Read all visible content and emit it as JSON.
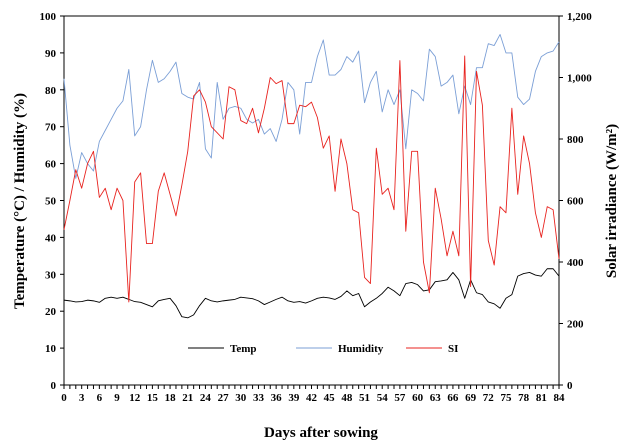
{
  "chart_data": {
    "type": "line",
    "xlabel": "Days after sowing",
    "ylabel_left": "Temperature (°C) /  Humidity (%)",
    "ylabel_right": "Solar irradiance (W/m²)",
    "xlim": [
      0,
      84
    ],
    "ylim_left": [
      0,
      100
    ],
    "ylim_right": [
      0,
      1200
    ],
    "x_ticks": [
      0,
      3,
      6,
      9,
      12,
      15,
      18,
      21,
      24,
      27,
      30,
      33,
      36,
      39,
      42,
      45,
      48,
      51,
      54,
      57,
      60,
      63,
      66,
      69,
      72,
      75,
      78,
      81,
      84
    ],
    "y_ticks_left": [
      0,
      10,
      20,
      30,
      40,
      50,
      60,
      70,
      80,
      90,
      100
    ],
    "y_ticks_right": [
      0,
      200,
      400,
      600,
      800,
      1000,
      1200
    ],
    "y_tick_labels_right": [
      "0",
      "200",
      "400",
      "600",
      "800",
      "1,000",
      "1,200"
    ],
    "grid": false,
    "legend_position": "bottom-center",
    "series": [
      {
        "name": "Temp",
        "color": "#000000",
        "axis": "left",
        "values": [
          23,
          22.8,
          22.5,
          22.6,
          23,
          22.8,
          22.4,
          23.5,
          23.8,
          23.5,
          23.8,
          23.2,
          22.6,
          22.4,
          21.8,
          21.2,
          22.8,
          23.2,
          23.5,
          21.5,
          18.5,
          18.2,
          19,
          21.5,
          23.5,
          22.8,
          22.5,
          22.8,
          23,
          23.2,
          23.8,
          23.6,
          23.4,
          22.8,
          21.8,
          22.5,
          23.2,
          23.8,
          22.8,
          22.4,
          22.6,
          22.2,
          22.8,
          23.5,
          23.8,
          23.6,
          23.2,
          24,
          25.5,
          24.2,
          24.8,
          21.2,
          22.5,
          23.5,
          24.8,
          26.5,
          25.5,
          24.2,
          27.5,
          27.8,
          27.2,
          25.5,
          25.8,
          28,
          28.2,
          28.5,
          30.5,
          28.5,
          23.5,
          28.5,
          25,
          24.5,
          22.5,
          22,
          20.8,
          23.5,
          24.5,
          29.5,
          30.2,
          30.5,
          29.8,
          29.5,
          31.5,
          31.5,
          29.5
        ]
      },
      {
        "name": "Humidity",
        "color": "#7b9fd6",
        "axis": "left",
        "values": [
          83,
          65,
          56,
          63,
          60,
          58,
          66,
          69,
          72,
          75,
          77,
          85.5,
          67.5,
          70,
          80,
          88,
          82,
          83,
          85,
          87.5,
          79,
          78,
          77.5,
          82,
          64,
          61.5,
          82,
          72,
          75,
          75.5,
          75,
          72,
          71,
          72,
          68,
          69.5,
          66,
          72,
          82,
          80,
          68,
          82,
          82,
          89,
          93.5,
          84,
          84,
          85.5,
          89,
          87.5,
          90.5,
          76.5,
          82,
          85,
          74,
          80,
          76,
          80,
          64,
          80,
          79,
          77,
          91,
          89,
          81,
          82,
          84,
          73.5,
          81,
          76,
          86,
          86,
          92.5,
          92,
          95,
          90,
          90,
          78,
          76,
          77.5,
          85,
          89,
          90,
          90.5,
          93
        ]
      },
      {
        "name": "SI",
        "color": "#e8231f",
        "axis": "right",
        "values": [
          505,
          600,
          700,
          640,
          720,
          760,
          610,
          640,
          570,
          640,
          600,
          270,
          660,
          690,
          460,
          460,
          630,
          690,
          620,
          550,
          650,
          760,
          940,
          960,
          920,
          840,
          820,
          800,
          970,
          960,
          860,
          850,
          900,
          820,
          900,
          1000,
          980,
          990,
          850,
          850,
          910,
          905,
          920,
          870,
          770,
          810,
          630,
          800,
          720,
          570,
          560,
          350,
          330,
          770,
          620,
          640,
          570,
          1055,
          500,
          760,
          760,
          400,
          300,
          640,
          540,
          420,
          500,
          420,
          1070,
          320,
          1020,
          910,
          470,
          390,
          580,
          560,
          900,
          620,
          810,
          720,
          560,
          480,
          580,
          570,
          410
        ]
      }
    ]
  }
}
